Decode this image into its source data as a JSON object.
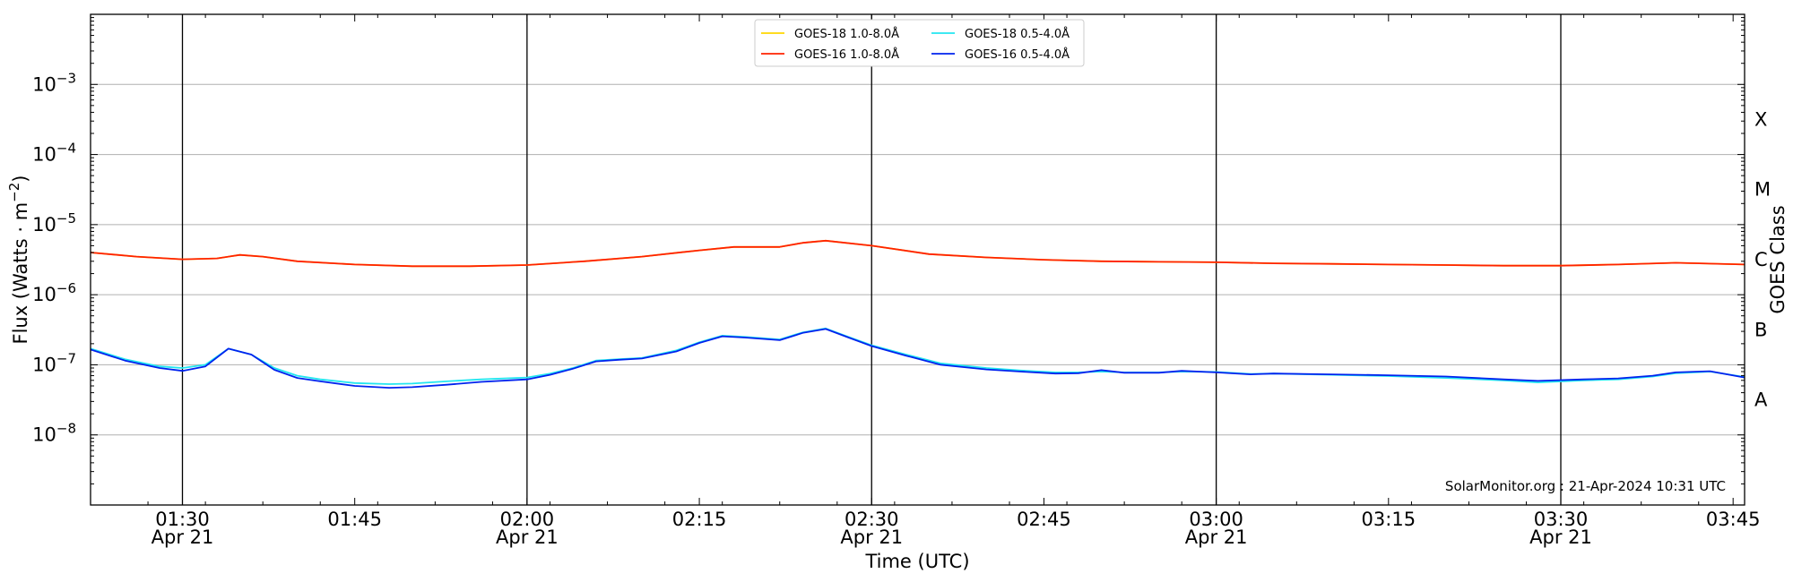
{
  "chart_data": {
    "type": "line",
    "ylabel_prefix": "Flux (Watts · m",
    "ylabel_exp": "−2",
    "ylabel_suffix": ")",
    "xlabel": "Time (UTC)",
    "right_label": "GOES Class",
    "credit": "SolarMonitor.org : 21-Apr-2024 10:31 UTC",
    "y_scale": "log",
    "ylim": [
      1e-09,
      0.01
    ],
    "xlim": [
      "01:22",
      "03:46"
    ],
    "grid": "horizontal at decades",
    "legend_position": "top-center",
    "y_ticks": [
      {
        "base": "10",
        "exp": "−8",
        "value": 1e-08
      },
      {
        "base": "10",
        "exp": "−7",
        "value": 1e-07
      },
      {
        "base": "10",
        "exp": "−6",
        "value": 1e-06
      },
      {
        "base": "10",
        "exp": "−5",
        "value": 1e-05
      },
      {
        "base": "10",
        "exp": "−4",
        "value": 0.0001
      },
      {
        "base": "10",
        "exp": "−3",
        "value": 0.001
      }
    ],
    "x_ticks": [
      {
        "time": "01:30",
        "label": "01:30",
        "sub": "Apr 21",
        "vline": true
      },
      {
        "time": "01:45",
        "label": "01:45",
        "sub": "",
        "vline": false
      },
      {
        "time": "02:00",
        "label": "02:00",
        "sub": "Apr 21",
        "vline": true
      },
      {
        "time": "02:15",
        "label": "02:15",
        "sub": "",
        "vline": false
      },
      {
        "time": "02:30",
        "label": "02:30",
        "sub": "Apr 21",
        "vline": true
      },
      {
        "time": "02:45",
        "label": "02:45",
        "sub": "",
        "vline": false
      },
      {
        "time": "03:00",
        "label": "03:00",
        "sub": "Apr 21",
        "vline": true
      },
      {
        "time": "03:15",
        "label": "03:15",
        "sub": "",
        "vline": false
      },
      {
        "time": "03:30",
        "label": "03:30",
        "sub": "Apr 21",
        "vline": true
      },
      {
        "time": "03:45",
        "label": "03:45",
        "sub": "",
        "vline": false
      }
    ],
    "goes_classes": [
      {
        "label": "X",
        "value": 0.000316
      },
      {
        "label": "M",
        "value": 3.16e-05
      },
      {
        "label": "C",
        "value": 3.16e-06
      },
      {
        "label": "B",
        "value": 3.16e-07
      },
      {
        "label": "A",
        "value": 3.16e-08
      }
    ],
    "legend": [
      {
        "name": "GOES-18 1.0-8.0Å",
        "color": "#FFD700"
      },
      {
        "name": "GOES-16 1.0-8.0Å",
        "color": "#FF2200"
      },
      {
        "name": "GOES-18 0.5-4.0Å",
        "color": "#22E6F0"
      },
      {
        "name": "GOES-16 0.5-4.0Å",
        "color": "#0022EE"
      }
    ],
    "series": [
      {
        "name": "GOES-18 1.0-8.0Å",
        "color": "#FFD700",
        "x": [
          "01:22",
          "01:26",
          "01:30",
          "01:33",
          "01:35",
          "01:37",
          "01:40",
          "01:45",
          "01:50",
          "01:55",
          "02:00",
          "02:05",
          "02:10",
          "02:15",
          "02:18",
          "02:22",
          "02:24",
          "02:26",
          "02:30",
          "02:35",
          "02:40",
          "02:45",
          "02:50",
          "02:55",
          "03:00",
          "03:05",
          "03:10",
          "03:15",
          "03:20",
          "03:25",
          "03:30",
          "03:35",
          "03:40",
          "03:46"
        ],
        "y": [
          4e-06,
          3.5e-06,
          3.2e-06,
          3.3e-06,
          3.7e-06,
          3.5e-06,
          3e-06,
          2.7e-06,
          2.55e-06,
          2.55e-06,
          2.65e-06,
          3e-06,
          3.5e-06,
          4.3e-06,
          4.8e-06,
          4.8e-06,
          5.5e-06,
          5.9e-06,
          5e-06,
          3.8e-06,
          3.4e-06,
          3.15e-06,
          3e-06,
          2.95e-06,
          2.9e-06,
          2.8e-06,
          2.75e-06,
          2.7e-06,
          2.65e-06,
          2.6e-06,
          2.6e-06,
          2.7e-06,
          2.85e-06,
          2.7e-06
        ]
      },
      {
        "name": "GOES-16 1.0-8.0Å",
        "color": "#FF2200",
        "x": [
          "01:22",
          "01:26",
          "01:30",
          "01:33",
          "01:35",
          "01:37",
          "01:40",
          "01:45",
          "01:50",
          "01:55",
          "02:00",
          "02:05",
          "02:10",
          "02:15",
          "02:18",
          "02:22",
          "02:24",
          "02:26",
          "02:30",
          "02:35",
          "02:40",
          "02:45",
          "02:50",
          "02:55",
          "03:00",
          "03:05",
          "03:10",
          "03:15",
          "03:20",
          "03:25",
          "03:30",
          "03:35",
          "03:40",
          "03:46"
        ],
        "y": [
          4e-06,
          3.5e-06,
          3.2e-06,
          3.3e-06,
          3.7e-06,
          3.5e-06,
          3e-06,
          2.7e-06,
          2.55e-06,
          2.55e-06,
          2.65e-06,
          3e-06,
          3.5e-06,
          4.3e-06,
          4.8e-06,
          4.8e-06,
          5.5e-06,
          5.9e-06,
          5e-06,
          3.8e-06,
          3.4e-06,
          3.15e-06,
          3e-06,
          2.95e-06,
          2.9e-06,
          2.8e-06,
          2.75e-06,
          2.7e-06,
          2.65e-06,
          2.6e-06,
          2.6e-06,
          2.7e-06,
          2.85e-06,
          2.7e-06
        ]
      },
      {
        "name": "GOES-18 0.5-4.0Å",
        "color": "#22E6F0",
        "x": [
          "01:22",
          "01:25",
          "01:28",
          "01:30",
          "01:32",
          "01:34",
          "01:36",
          "01:38",
          "01:40",
          "01:42",
          "01:45",
          "01:48",
          "01:50",
          "01:53",
          "01:56",
          "02:00",
          "02:02",
          "02:04",
          "02:06",
          "02:08",
          "02:10",
          "02:13",
          "02:15",
          "02:17",
          "02:19",
          "02:22",
          "02:24",
          "02:26",
          "02:28",
          "02:30",
          "02:33",
          "02:36",
          "02:40",
          "02:43",
          "02:46",
          "02:48",
          "02:50",
          "02:52",
          "02:55",
          "02:57",
          "03:00",
          "03:03",
          "03:05",
          "03:10",
          "03:15",
          "03:20",
          "03:25",
          "03:28",
          "03:32",
          "03:35",
          "03:38",
          "03:40",
          "03:43",
          "03:46"
        ],
        "y": [
          1.7e-07,
          1.2e-07,
          9.5e-08,
          9e-08,
          1e-07,
          1.7e-07,
          1.4e-07,
          9e-08,
          7e-08,
          6.2e-08,
          5.5e-08,
          5.3e-08,
          5.4e-08,
          5.8e-08,
          6.2e-08,
          6.6e-08,
          7.5e-08,
          9e-08,
          1.15e-07,
          1.2e-07,
          1.25e-07,
          1.6e-07,
          2.1e-07,
          2.6e-07,
          2.5e-07,
          2.3e-07,
          2.9e-07,
          3.3e-07,
          2.5e-07,
          1.9e-07,
          1.4e-07,
          1.05e-07,
          9e-08,
          8.3e-08,
          7.8e-08,
          7.8e-08,
          8e-08,
          7.8e-08,
          7.8e-08,
          8e-08,
          7.9e-08,
          7.4e-08,
          7.5e-08,
          7.2e-08,
          6.9e-08,
          6.5e-08,
          6e-08,
          5.6e-08,
          6e-08,
          6.2e-08,
          6.8e-08,
          7.6e-08,
          8e-08,
          6.7e-08
        ]
      },
      {
        "name": "GOES-16 0.5-4.0Å",
        "color": "#0022EE",
        "x": [
          "01:22",
          "01:25",
          "01:28",
          "01:30",
          "01:32",
          "01:34",
          "01:36",
          "01:38",
          "01:40",
          "01:42",
          "01:45",
          "01:48",
          "01:50",
          "01:53",
          "01:56",
          "02:00",
          "02:02",
          "02:04",
          "02:06",
          "02:08",
          "02:10",
          "02:13",
          "02:15",
          "02:17",
          "02:19",
          "02:22",
          "02:24",
          "02:26",
          "02:28",
          "02:30",
          "02:33",
          "02:36",
          "02:40",
          "02:43",
          "02:46",
          "02:48",
          "02:50",
          "02:52",
          "02:55",
          "02:57",
          "03:00",
          "03:03",
          "03:05",
          "03:10",
          "03:15",
          "03:20",
          "03:25",
          "03:28",
          "03:32",
          "03:35",
          "03:38",
          "03:40",
          "03:43",
          "03:46"
        ],
        "y": [
          1.65e-07,
          1.15e-07,
          9e-08,
          8.2e-08,
          9.5e-08,
          1.7e-07,
          1.4e-07,
          8.5e-08,
          6.5e-08,
          5.8e-08,
          5e-08,
          4.7e-08,
          4.8e-08,
          5.2e-08,
          5.7e-08,
          6.2e-08,
          7.2e-08,
          8.8e-08,
          1.12e-07,
          1.18e-07,
          1.23e-07,
          1.55e-07,
          2.05e-07,
          2.55e-07,
          2.45e-07,
          2.25e-07,
          2.85e-07,
          3.25e-07,
          2.45e-07,
          1.85e-07,
          1.35e-07,
          1e-07,
          8.6e-08,
          8e-08,
          7.5e-08,
          7.6e-08,
          8.4e-08,
          7.7e-08,
          7.7e-08,
          8.2e-08,
          7.8e-08,
          7.3e-08,
          7.5e-08,
          7.3e-08,
          7.1e-08,
          6.8e-08,
          6.2e-08,
          5.9e-08,
          6.2e-08,
          6.4e-08,
          7e-08,
          7.8e-08,
          8.1e-08,
          6.6e-08
        ]
      }
    ]
  }
}
